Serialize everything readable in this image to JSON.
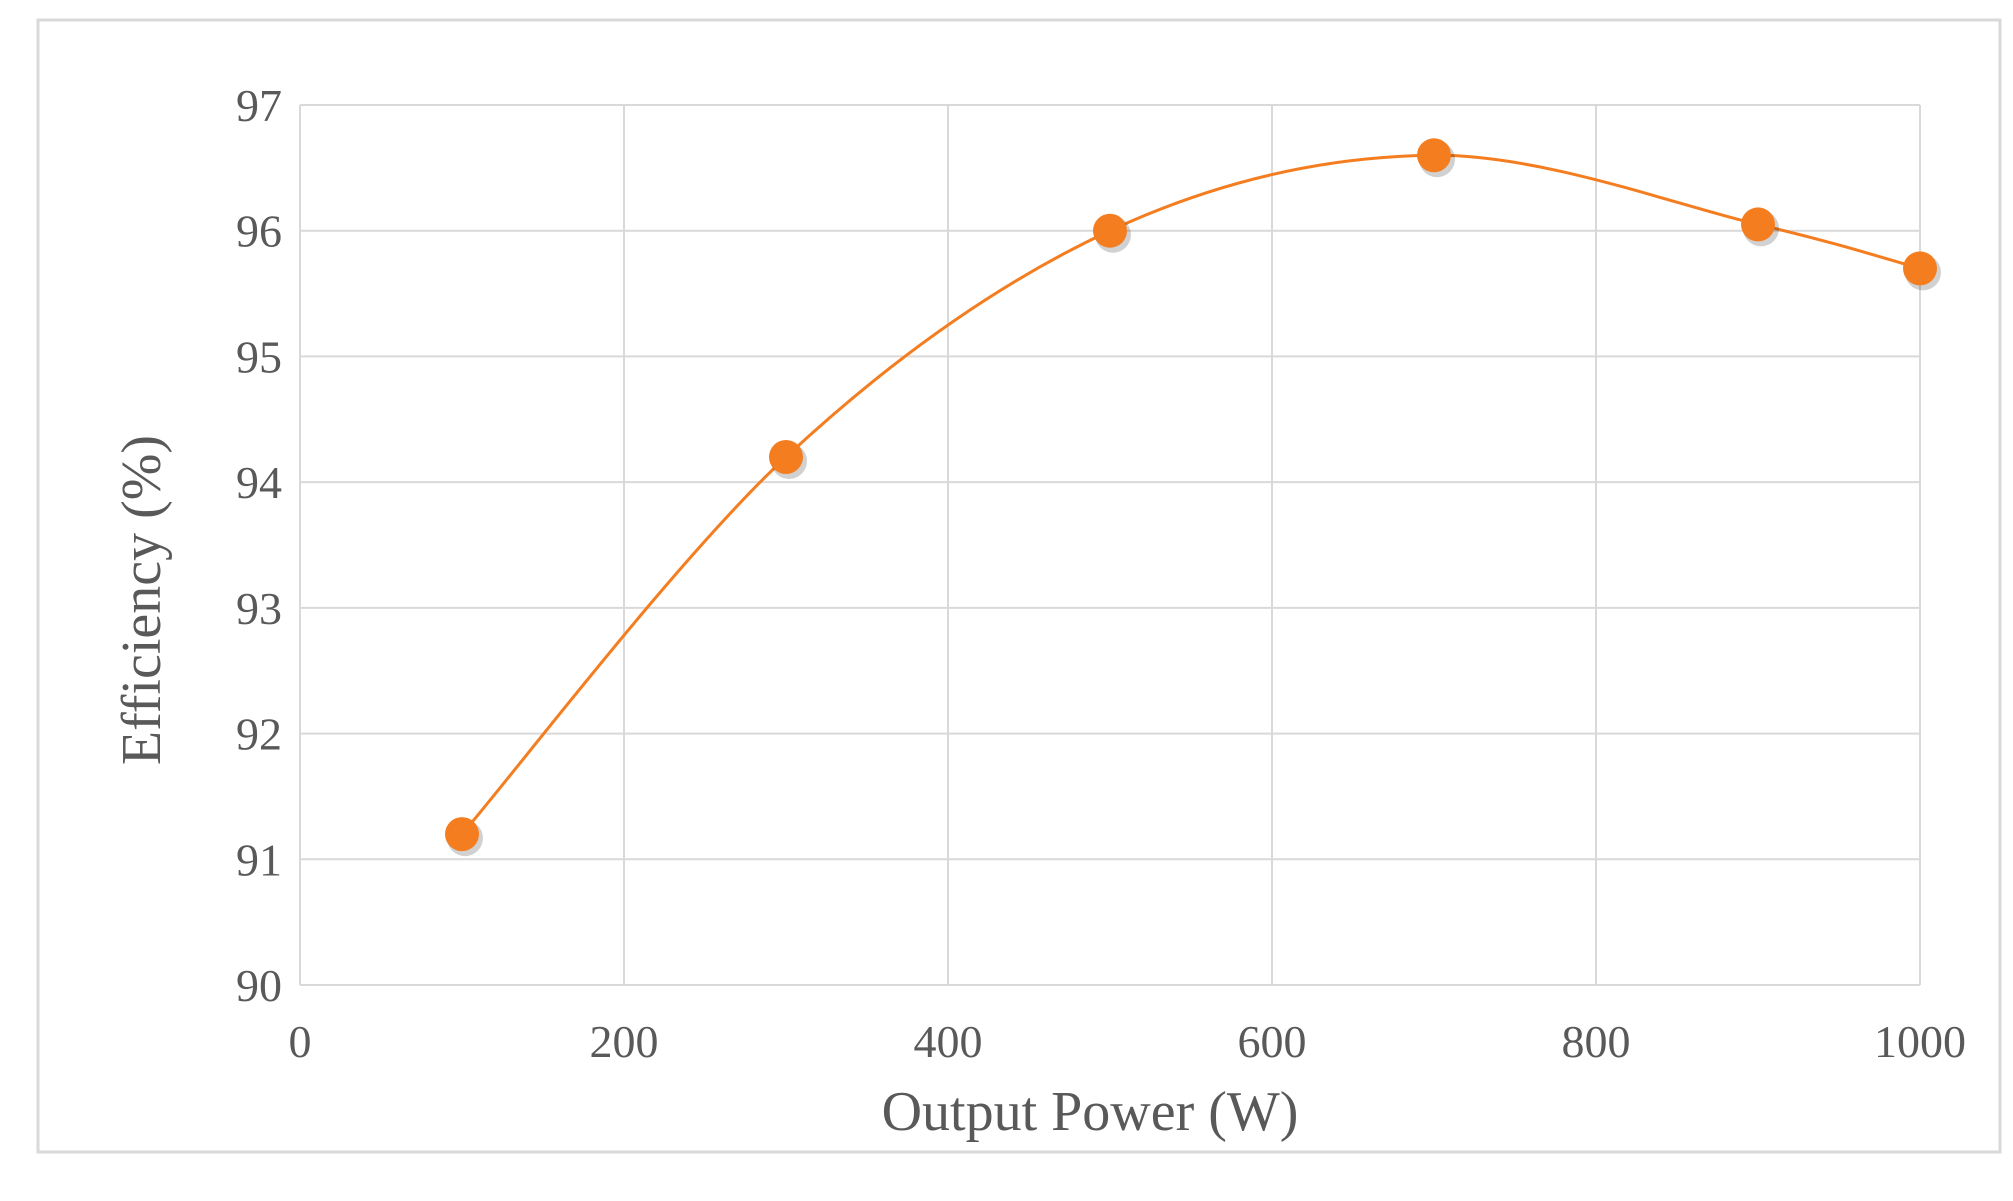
{
  "chart_data": {
    "type": "line",
    "smooth": true,
    "xlabel": "Output  Power (W)",
    "ylabel": "Efficiency (%)",
    "xlim": [
      0,
      1000
    ],
    "ylim": [
      90,
      97
    ],
    "xticks": [
      "0",
      "200",
      "400",
      "600",
      "800",
      "1000"
    ],
    "yticks": [
      "90",
      "91",
      "92",
      "93",
      "94",
      "95",
      "96",
      "97"
    ],
    "grid": true,
    "legend": "none",
    "series": [
      {
        "x": [
          100,
          300,
          500,
          700,
          900,
          1000
        ],
        "y": [
          91.2,
          94.2,
          96.0,
          96.6,
          96.05,
          95.7
        ],
        "color": "#f47d20",
        "marker": "circle"
      }
    ]
  },
  "colors": {
    "grid": "#d9d9d9",
    "frame": "#d9d9d9",
    "text": "#595959",
    "series": "#f47d20",
    "marker_fill": "#f47d20"
  }
}
